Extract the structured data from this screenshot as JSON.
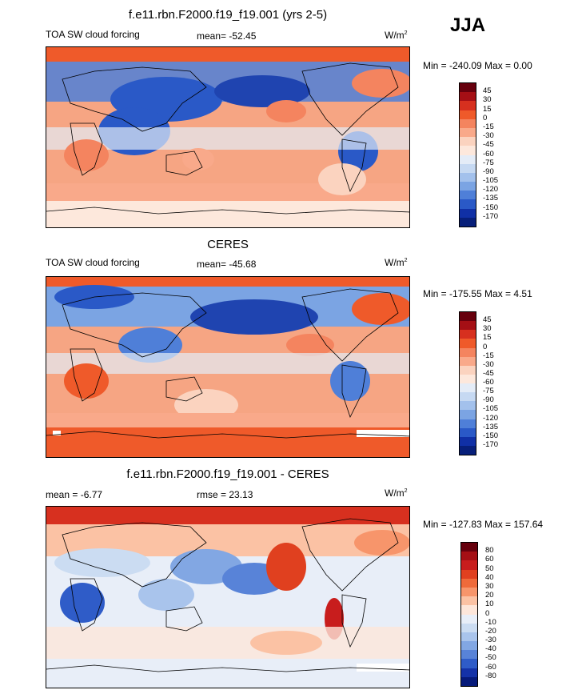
{
  "season": "JJA",
  "panels": [
    {
      "title": "f.e11.rbn.F2000.f19_f19.001 (yrs 2-5)",
      "left_label": "TOA SW cloud forcing",
      "center_label": "mean= -52.45",
      "units": "W/m",
      "units_sup": "2",
      "minmax": "Min = -240.09 Max =   0.00",
      "levels": [
        "45",
        "30",
        "15",
        "0",
        "-15",
        "-30",
        "-45",
        "-60",
        "-75",
        "-90",
        "-105",
        "-120",
        "-135",
        "-150",
        "-170"
      ],
      "colors": [
        "#67000d",
        "#a50f15",
        "#d7301f",
        "#ef5a2a",
        "#f4845f",
        "#f9a98a",
        "#fbd3bf",
        "#fde8dc",
        "#e4ecf7",
        "#c6d9f2",
        "#a3c1ec",
        "#7ba4e3",
        "#4f7fd8",
        "#2a59c7",
        "#1030a6",
        "#071f7a"
      ]
    },
    {
      "title": "CERES",
      "left_label": "TOA SW cloud forcing",
      "center_label": "mean= -45.68",
      "units": "W/m",
      "units_sup": "2",
      "minmax": "Min = -175.55 Max =   4.51",
      "levels": [
        "45",
        "30",
        "15",
        "0",
        "-15",
        "-30",
        "-45",
        "-60",
        "-75",
        "-90",
        "-105",
        "-120",
        "-135",
        "-150",
        "-170"
      ],
      "colors": [
        "#67000d",
        "#a50f15",
        "#d7301f",
        "#ef5a2a",
        "#f4845f",
        "#f9a98a",
        "#fbd3bf",
        "#fde8dc",
        "#e4ecf7",
        "#c6d9f2",
        "#a3c1ec",
        "#7ba4e3",
        "#4f7fd8",
        "#2a59c7",
        "#1030a6",
        "#071f7a"
      ]
    },
    {
      "title": "f.e11.rbn.F2000.f19_f19.001 - CERES",
      "left_label": "mean =  -6.77",
      "center_label": "rmse =  23.13",
      "units": "W/m",
      "units_sup": "2",
      "minmax": "Min = -127.83 Max = 157.64",
      "levels": [
        "80",
        "60",
        "50",
        "40",
        "30",
        "20",
        "10",
        "0",
        "-10",
        "-20",
        "-30",
        "-40",
        "-50",
        "-60",
        "-80"
      ],
      "colors": [
        "#67000d",
        "#a50f15",
        "#c81d1d",
        "#e0401f",
        "#ef6a3a",
        "#f7956b",
        "#fbc2a4",
        "#fde6da",
        "#e8eef8",
        "#cbdcf2",
        "#a9c4ec",
        "#82a7e3",
        "#5883d8",
        "#2f5cc8",
        "#1432a8",
        "#061a7a"
      ]
    }
  ]
}
